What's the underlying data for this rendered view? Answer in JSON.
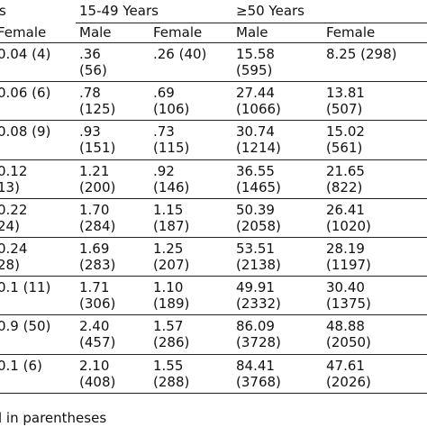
{
  "header": {
    "groups": [
      "s",
      "15-49 Years",
      "≥50 Years"
    ],
    "columns": [
      "Female",
      "Male",
      "Female",
      "Male",
      "Female"
    ]
  },
  "table": {
    "rows": [
      [
        [
          "0.04 (4)"
        ],
        [
          ".36",
          "(56)"
        ],
        [
          ".26 (40)"
        ],
        [
          "15.58",
          "(595)"
        ],
        [
          "8.25 (298)"
        ]
      ],
      [
        [
          "0.06 (6)"
        ],
        [
          ".78",
          "(125)"
        ],
        [
          ".69",
          "(106)"
        ],
        [
          "27.44",
          "(1066)"
        ],
        [
          "13.81",
          "(507)"
        ]
      ],
      [
        [
          "0.08 (9)"
        ],
        [
          ".93",
          "(151)"
        ],
        [
          ".73",
          "(115)"
        ],
        [
          "30.74",
          "(1214)"
        ],
        [
          "15.02",
          "(561)"
        ]
      ],
      [
        [
          "0.12",
          "13)"
        ],
        [
          "1.21",
          "(200)"
        ],
        [
          ".92",
          "(146)"
        ],
        [
          "36.55",
          "(1465)"
        ],
        [
          "21.65",
          "(822)"
        ]
      ],
      [
        [
          "0.22",
          "24)"
        ],
        [
          "1.70",
          "(284)"
        ],
        [
          "1.15",
          "(187)"
        ],
        [
          "50.39",
          "(2058)"
        ],
        [
          "26.41",
          "(1020)"
        ]
      ],
      [
        [
          "0.24",
          "28)"
        ],
        [
          "1.69",
          "(283)"
        ],
        [
          "1.25",
          "(207)"
        ],
        [
          "53.51",
          "(2138)"
        ],
        [
          "28.19",
          "(1197)"
        ]
      ],
      [
        [
          "0.1 (11)"
        ],
        [
          "1.71",
          "(306)"
        ],
        [
          "1.10",
          "(189)"
        ],
        [
          "49.91",
          "(2332)"
        ],
        [
          "30.40",
          "(1375)"
        ]
      ],
      [
        [
          "0.9 (50)"
        ],
        [
          "2.40",
          "(457)"
        ],
        [
          "1.57",
          "(286)"
        ],
        [
          "86.09",
          "(3728)"
        ],
        [
          "48.88",
          "(2050)"
        ]
      ],
      [
        [
          "0.1 (6)"
        ],
        [
          "2.10",
          "(408)"
        ],
        [
          "1.55",
          "(288)"
        ],
        [
          "84.41",
          "(3768)"
        ],
        [
          "47.61",
          "(2026)"
        ]
      ]
    ]
  },
  "footer": {
    "note": "l in parentheses"
  }
}
